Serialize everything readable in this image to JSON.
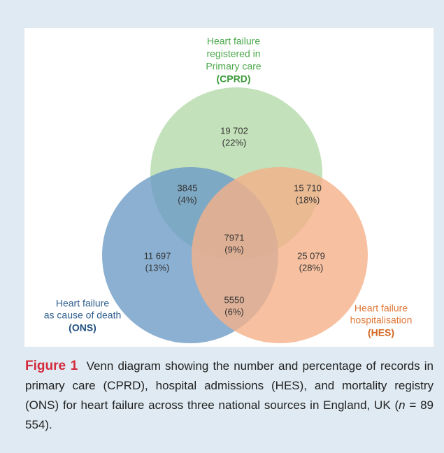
{
  "diagram": {
    "sets": [
      {
        "lines": [
          "Heart failure",
          "registered in",
          "Primary care"
        ],
        "abbreviation": "(CPRD)"
      },
      {
        "lines": [
          "Heart failure",
          "as cause of death"
        ],
        "abbreviation": "(ONS)"
      },
      {
        "lines": [
          "Heart failure",
          "hospitalisation"
        ],
        "abbreviation": "(HES)"
      }
    ],
    "regions": [
      {
        "count": "19 702",
        "percent": "(22%)"
      },
      {
        "count": "3845",
        "percent": "(4%)"
      },
      {
        "count": "15 710",
        "percent": "(18%)"
      },
      {
        "count": "7971",
        "percent": "(9%)"
      },
      {
        "count": "11 697",
        "percent": "(13%)"
      },
      {
        "count": "25 079",
        "percent": "(28%)"
      },
      {
        "count": "5550",
        "percent": "(6%)"
      }
    ]
  },
  "caption": {
    "label": "Figure 1",
    "text_before": "Venn diagram showing the number and percentage of records in primary care (CPRD), hospital admissions (HES), and mortality registry (ONS) for heart failure across three national sources in England, UK (",
    "n_symbol": "n",
    "text_after": " = 89 554)."
  }
}
